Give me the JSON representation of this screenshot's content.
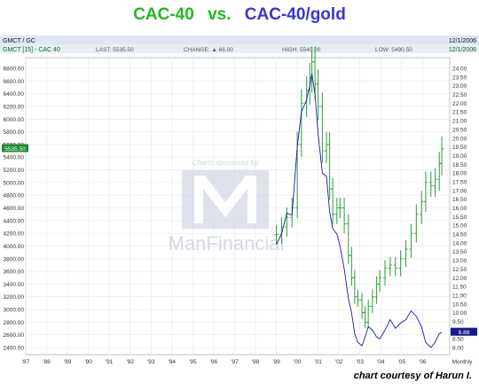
{
  "title": {
    "left": "CAC-40",
    "vs": "vs.",
    "right": "CAC-40/gold"
  },
  "header": {
    "symbol_row": {
      "left": "GMCT / GC",
      "right": "12/1/2006"
    },
    "quote_row": {
      "name": "GMCT [15] - CAC 40",
      "last": "LAST: 5535.50",
      "change": "CHANGE: ▲ 66.00",
      "high": "HIGH: 5540.00",
      "low": "LOW: 5490.50",
      "date": "12/1/2006"
    }
  },
  "watermark": {
    "sponsor": "Charts sponsored by:",
    "brand": "ManFinancial"
  },
  "courtesy": "chart courtesy of Harun I.",
  "colors": {
    "cac": "#2e9c3a",
    "ratio": "#1a1a9c",
    "title_green": "#22b822",
    "title_blue": "#3b35d6"
  },
  "chart_data": {
    "type": "line",
    "frequency_label": "Monthly",
    "x_tick_labels": [
      "'87",
      "'88",
      "'89",
      "'90",
      "'91",
      "'92",
      "'93",
      "'94",
      "'95",
      "'96",
      "'97",
      "'98",
      "'99",
      "'00",
      "'01",
      "'02",
      "'03",
      "'04",
      "'05",
      "'06"
    ],
    "left_axis": {
      "ticks": [
        "2400.00",
        "2600.00",
        "2800.00",
        "3000.00",
        "3200.00",
        "3400.00",
        "3600.00",
        "3800.00",
        "4000.00",
        "4200.00",
        "4400.00",
        "4600.00",
        "4800.00",
        "5000.00",
        "5200.00",
        "5400.00",
        "5600.00",
        "5800.00",
        "6000.00",
        "6200.00",
        "6400.00",
        "6600.00",
        "6800.00"
      ],
      "min": 2400,
      "max": 6800,
      "last_label": "5535.50"
    },
    "right_axis": {
      "ticks": [
        "8.00",
        "8.50",
        "9.00",
        "9.50",
        "10.00",
        "10.50",
        "11.00",
        "11.50",
        "12.00",
        "12.50",
        "13.00",
        "13.50",
        "14.00",
        "14.50",
        "15.00",
        "15.50",
        "16.00",
        "16.50",
        "17.00",
        "17.50",
        "18.00",
        "18.50",
        "19.00",
        "19.50",
        "20.00",
        "20.50",
        "21.00",
        "21.50",
        "22.00",
        "22.50",
        "23.00",
        "23.50",
        "24.00"
      ],
      "min": 8,
      "max": 24,
      "last_label": "8.88"
    },
    "series": [
      {
        "name": "GMCT [15] - CAC 40",
        "axis": "left",
        "style": "ohlc",
        "points": [
          [
            1999.0,
            4180
          ],
          [
            1999.25,
            4300
          ],
          [
            1999.5,
            4450
          ],
          [
            1999.75,
            4600
          ],
          [
            2000.0,
            5600
          ],
          [
            2000.2,
            6250
          ],
          [
            2000.45,
            6450
          ],
          [
            2000.6,
            6650
          ],
          [
            2000.7,
            6900
          ],
          [
            2000.85,
            6550
          ],
          [
            2001.0,
            6200
          ],
          [
            2001.2,
            5500
          ],
          [
            2001.4,
            5600
          ],
          [
            2001.55,
            4900
          ],
          [
            2001.7,
            4500
          ],
          [
            2001.9,
            4600
          ],
          [
            2002.05,
            4600
          ],
          [
            2002.25,
            4350
          ],
          [
            2002.45,
            3850
          ],
          [
            2002.6,
            3500
          ],
          [
            2002.75,
            3200
          ],
          [
            2002.9,
            3150
          ],
          [
            2003.1,
            2950
          ],
          [
            2003.25,
            2800
          ],
          [
            2003.4,
            3050
          ],
          [
            2003.6,
            3200
          ],
          [
            2003.8,
            3400
          ],
          [
            2003.95,
            3500
          ],
          [
            2004.2,
            3650
          ],
          [
            2004.45,
            3700
          ],
          [
            2004.7,
            3650
          ],
          [
            2004.95,
            3800
          ],
          [
            2005.2,
            3950
          ],
          [
            2005.45,
            4200
          ],
          [
            2005.7,
            4500
          ],
          [
            2005.95,
            4700
          ],
          [
            2006.15,
            5000
          ],
          [
            2006.4,
            4950
          ],
          [
            2006.6,
            5050
          ],
          [
            2006.8,
            5300
          ],
          [
            2006.92,
            5530
          ]
        ]
      },
      {
        "name": "CAC-40/gold",
        "axis": "right",
        "style": "line",
        "points": [
          [
            1999.0,
            13.9
          ],
          [
            1999.25,
            14.5
          ],
          [
            1999.5,
            15.7
          ],
          [
            1999.75,
            15.6
          ],
          [
            2000.0,
            19.5
          ],
          [
            2000.2,
            21.5
          ],
          [
            2000.45,
            22.2
          ],
          [
            2000.6,
            23.0
          ],
          [
            2000.7,
            23.7
          ],
          [
            2000.85,
            22.5
          ],
          [
            2001.0,
            20.2
          ],
          [
            2001.2,
            18.0
          ],
          [
            2001.4,
            17.8
          ],
          [
            2001.55,
            15.8
          ],
          [
            2001.7,
            14.8
          ],
          [
            2001.9,
            14.5
          ],
          [
            2002.05,
            13.8
          ],
          [
            2002.25,
            12.5
          ],
          [
            2002.45,
            10.8
          ],
          [
            2002.6,
            10.0
          ],
          [
            2002.75,
            8.8
          ],
          [
            2002.9,
            8.3
          ],
          [
            2003.1,
            8.1
          ],
          [
            2003.25,
            8.6
          ],
          [
            2003.4,
            9.2
          ],
          [
            2003.6,
            9.0
          ],
          [
            2003.8,
            8.6
          ],
          [
            2003.95,
            8.5
          ],
          [
            2004.2,
            9.0
          ],
          [
            2004.45,
            9.6
          ],
          [
            2004.7,
            9.1
          ],
          [
            2004.95,
            9.4
          ],
          [
            2005.2,
            9.6
          ],
          [
            2005.45,
            10.1
          ],
          [
            2005.7,
            9.8
          ],
          [
            2005.95,
            9.2
          ],
          [
            2006.15,
            8.3
          ],
          [
            2006.4,
            8.0
          ],
          [
            2006.6,
            8.3
          ],
          [
            2006.8,
            8.8
          ],
          [
            2006.92,
            8.88
          ]
        ]
      }
    ],
    "x_range": [
      1987.0,
      2007.3
    ],
    "grid": true
  }
}
